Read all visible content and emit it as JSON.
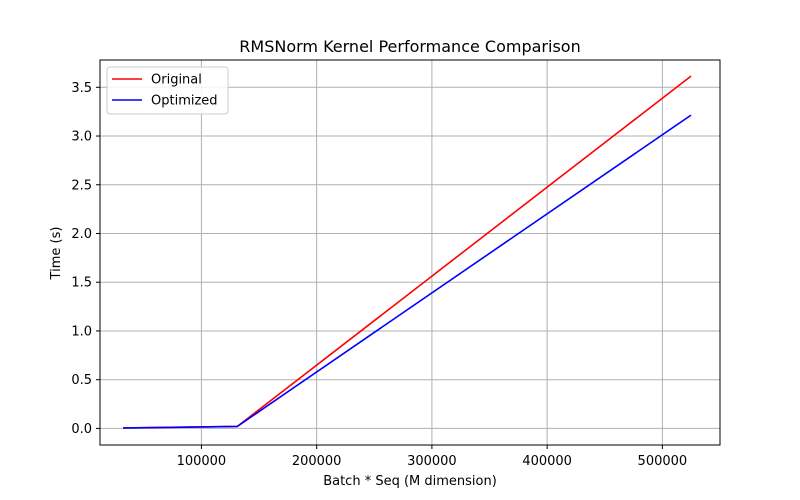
{
  "chart_data": {
    "type": "line",
    "title": "RMSNorm Kernel Performance Comparison",
    "xlabel": "Batch * Seq (M dimension)",
    "ylabel": "Time (s)",
    "x": [
      32768,
      131072,
      524288
    ],
    "series": [
      {
        "name": "Original",
        "color": "#ff0000",
        "values": [
          0.005,
          0.02,
          3.61
        ]
      },
      {
        "name": "Optimized",
        "color": "#0000ff",
        "values": [
          0.005,
          0.02,
          3.21
        ]
      }
    ],
    "xlim": [
      12000,
      550000
    ],
    "ylim": [
      -0.17,
      3.78
    ],
    "xticks": [
      100000,
      200000,
      300000,
      400000,
      500000
    ],
    "xtick_labels": [
      "100000",
      "200000",
      "300000",
      "400000",
      "500000"
    ],
    "yticks": [
      0.0,
      0.5,
      1.0,
      1.5,
      2.0,
      2.5,
      3.0,
      3.5
    ],
    "ytick_labels": [
      "0.0",
      "0.5",
      "1.0",
      "1.5",
      "2.0",
      "2.5",
      "3.0",
      "3.5"
    ],
    "grid": true,
    "legend_position": "top-left"
  }
}
